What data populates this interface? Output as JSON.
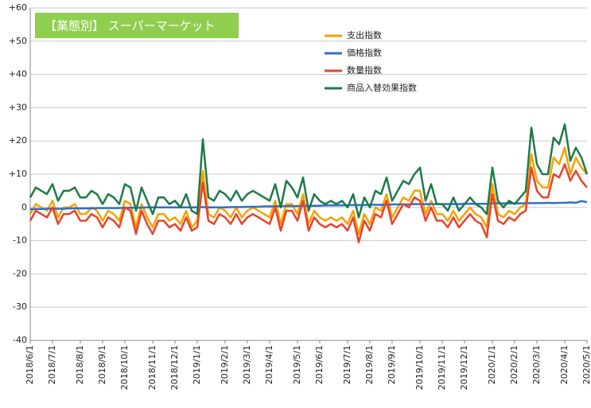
{
  "chart_data": {
    "type": "line",
    "title": "【業態別】 スーパーマーケット",
    "categories": [
      "2018/6/1",
      null,
      null,
      null,
      "2018/7/1",
      null,
      null,
      null,
      null,
      "2018/8/1",
      null,
      null,
      null,
      "2018/9/1",
      null,
      null,
      null,
      "2018/10/1",
      null,
      null,
      null,
      null,
      "2018/11/1",
      null,
      null,
      null,
      "2018/12/1",
      null,
      null,
      null,
      "2019/1/1",
      null,
      null,
      null,
      null,
      "2019/2/1",
      null,
      null,
      null,
      "2019/3/1",
      null,
      null,
      null,
      "2019/4/1",
      null,
      null,
      null,
      null,
      "2019/5/1",
      null,
      null,
      null,
      "2019/6/1",
      null,
      null,
      null,
      null,
      "2019/7/1",
      null,
      null,
      null,
      "2019/8/1",
      null,
      null,
      null,
      "2019/9/1",
      null,
      null,
      null,
      null,
      "2019/10/1",
      null,
      null,
      null,
      "2019/11/1",
      null,
      null,
      null,
      "2019/12/1",
      null,
      null,
      null,
      null,
      "2020/1/1",
      null,
      null,
      null,
      "2020/2/1",
      null,
      null,
      null,
      "2020/3/1",
      null,
      null,
      null,
      null,
      "2020/4/1",
      null,
      null,
      null,
      "2020/5/1"
    ],
    "series": [
      {
        "name": "支出指数",
        "color": "#f8a100",
        "values": [
          -2,
          1,
          0,
          -1,
          2,
          -3,
          0,
          0,
          1,
          -2,
          -2,
          0,
          -1,
          -4,
          -1,
          -2,
          -4,
          2,
          1,
          -6,
          1,
          -3,
          -6,
          -2,
          -2,
          -4,
          -3,
          -5,
          -1,
          -6,
          -4,
          11,
          -2,
          -3,
          0,
          -1,
          -3,
          0,
          -3,
          -1,
          0,
          -1,
          -2,
          -3,
          2,
          -5,
          1,
          1,
          -2,
          4,
          -5,
          -1,
          -3,
          -4,
          -3,
          -4,
          -3,
          -5,
          -1,
          -8,
          -2,
          -5,
          0,
          -1,
          4,
          -3,
          0,
          3,
          2,
          5,
          5,
          -2,
          2,
          -2,
          -2,
          -4,
          -1,
          -4,
          -2,
          0,
          -2,
          -3,
          -6,
          7,
          -2,
          -3,
          -1,
          -2,
          0,
          1,
          16,
          8,
          6,
          6,
          15,
          13,
          18,
          10,
          15,
          12,
          10
        ]
      },
      {
        "name": "価格指数",
        "color": "#2f6fc8",
        "values": [
          -0.5,
          -0.5,
          -0.5,
          -0.4,
          -0.4,
          -0.4,
          -0.4,
          -0.3,
          -0.3,
          -0.3,
          -0.3,
          -0.3,
          -0.2,
          -0.2,
          -0.2,
          -0.2,
          -0.2,
          -0.1,
          -0.1,
          -0.1,
          -0.1,
          0,
          0,
          0,
          0,
          0,
          0,
          0,
          0,
          0,
          0,
          0.1,
          0,
          0,
          0,
          0,
          0.1,
          0.1,
          0.1,
          0.2,
          0.2,
          0.2,
          0.3,
          0.3,
          0.3,
          0.4,
          0.4,
          0.4,
          0.4,
          0.5,
          0.5,
          0.5,
          0.5,
          0.6,
          0.6,
          0.6,
          0.6,
          0.7,
          0.7,
          0.7,
          0.7,
          0.8,
          0.8,
          0.8,
          0.8,
          0.9,
          0.9,
          0.9,
          0.9,
          1.0,
          1.0,
          1.0,
          1.0,
          1.0,
          1.0,
          1.0,
          1.0,
          1.0,
          1.1,
          1.1,
          1.1,
          1.1,
          1.1,
          1.2,
          1.2,
          1.2,
          1.2,
          1.2,
          1.2,
          1.3,
          1.3,
          1.3,
          1.3,
          1.4,
          1.3,
          1.4,
          1.4,
          1.5,
          1.4,
          1.9,
          1.6
        ]
      },
      {
        "name": "数量指数",
        "color": "#e8432c",
        "values": [
          -4,
          -1,
          -2,
          -3,
          0,
          -5,
          -2,
          -2,
          -1,
          -4,
          -4,
          -2,
          -3,
          -6,
          -3,
          -4,
          -6,
          0,
          -1,
          -8,
          -1,
          -5,
          -8,
          -4,
          -4,
          -6,
          -5,
          -7,
          -3,
          -7,
          -6,
          7.5,
          -4,
          -5,
          -2,
          -3,
          -5,
          -2,
          -5,
          -3,
          -2,
          -3,
          -4,
          -5,
          0,
          -7,
          -1,
          -1,
          -4,
          2,
          -7,
          -3,
          -5,
          -6,
          -5,
          -6,
          -5,
          -7,
          -3,
          -10.5,
          -4,
          -7,
          -2,
          -3,
          2,
          -5,
          -2,
          1,
          0,
          3,
          2,
          -4,
          0,
          -4,
          -4,
          -6,
          -3,
          -6,
          -4,
          -2,
          -4,
          -5,
          -9,
          4,
          -4,
          -5,
          -3,
          -4,
          -2,
          -1,
          12,
          5,
          3,
          3,
          10,
          9,
          13,
          8,
          11,
          8,
          6
        ]
      },
      {
        "name": "商品入替効果指数",
        "color": "#1f7a48",
        "values": [
          3,
          6,
          5,
          4,
          7,
          2,
          5,
          5,
          6,
          3,
          3,
          5,
          4,
          1,
          4,
          3,
          1,
          7,
          6,
          -1,
          6,
          2,
          -2,
          3,
          3,
          1,
          2,
          0,
          4,
          -1,
          -2,
          20.5,
          3,
          2,
          5,
          4,
          2,
          5,
          2,
          4,
          5,
          4,
          3,
          2,
          7,
          0,
          8,
          6,
          3,
          9,
          -1,
          4,
          2,
          1,
          2,
          1,
          2,
          0,
          4,
          -3,
          3,
          0,
          5,
          4,
          9,
          2,
          5,
          8,
          7,
          10,
          12,
          2,
          7,
          1,
          1,
          -1,
          3,
          -1,
          1,
          3,
          1,
          0,
          -2,
          12,
          2,
          0,
          2,
          1,
          3,
          5,
          24,
          13,
          10,
          10,
          21,
          19,
          25,
          14,
          18,
          15,
          10
        ]
      }
    ],
    "ylim": [
      -40,
      60
    ],
    "yticks": [
      -40,
      -30,
      -20,
      -10,
      0,
      {
        "value": 10,
        "label": "+10"
      },
      {
        "value": 20,
        "label": "+20"
      },
      {
        "value": 30,
        "label": "+30"
      },
      {
        "value": 40,
        "label": "+40"
      },
      {
        "value": 50,
        "label": "+50"
      },
      {
        "value": 60,
        "label": "+60"
      }
    ],
    "grid": true
  }
}
